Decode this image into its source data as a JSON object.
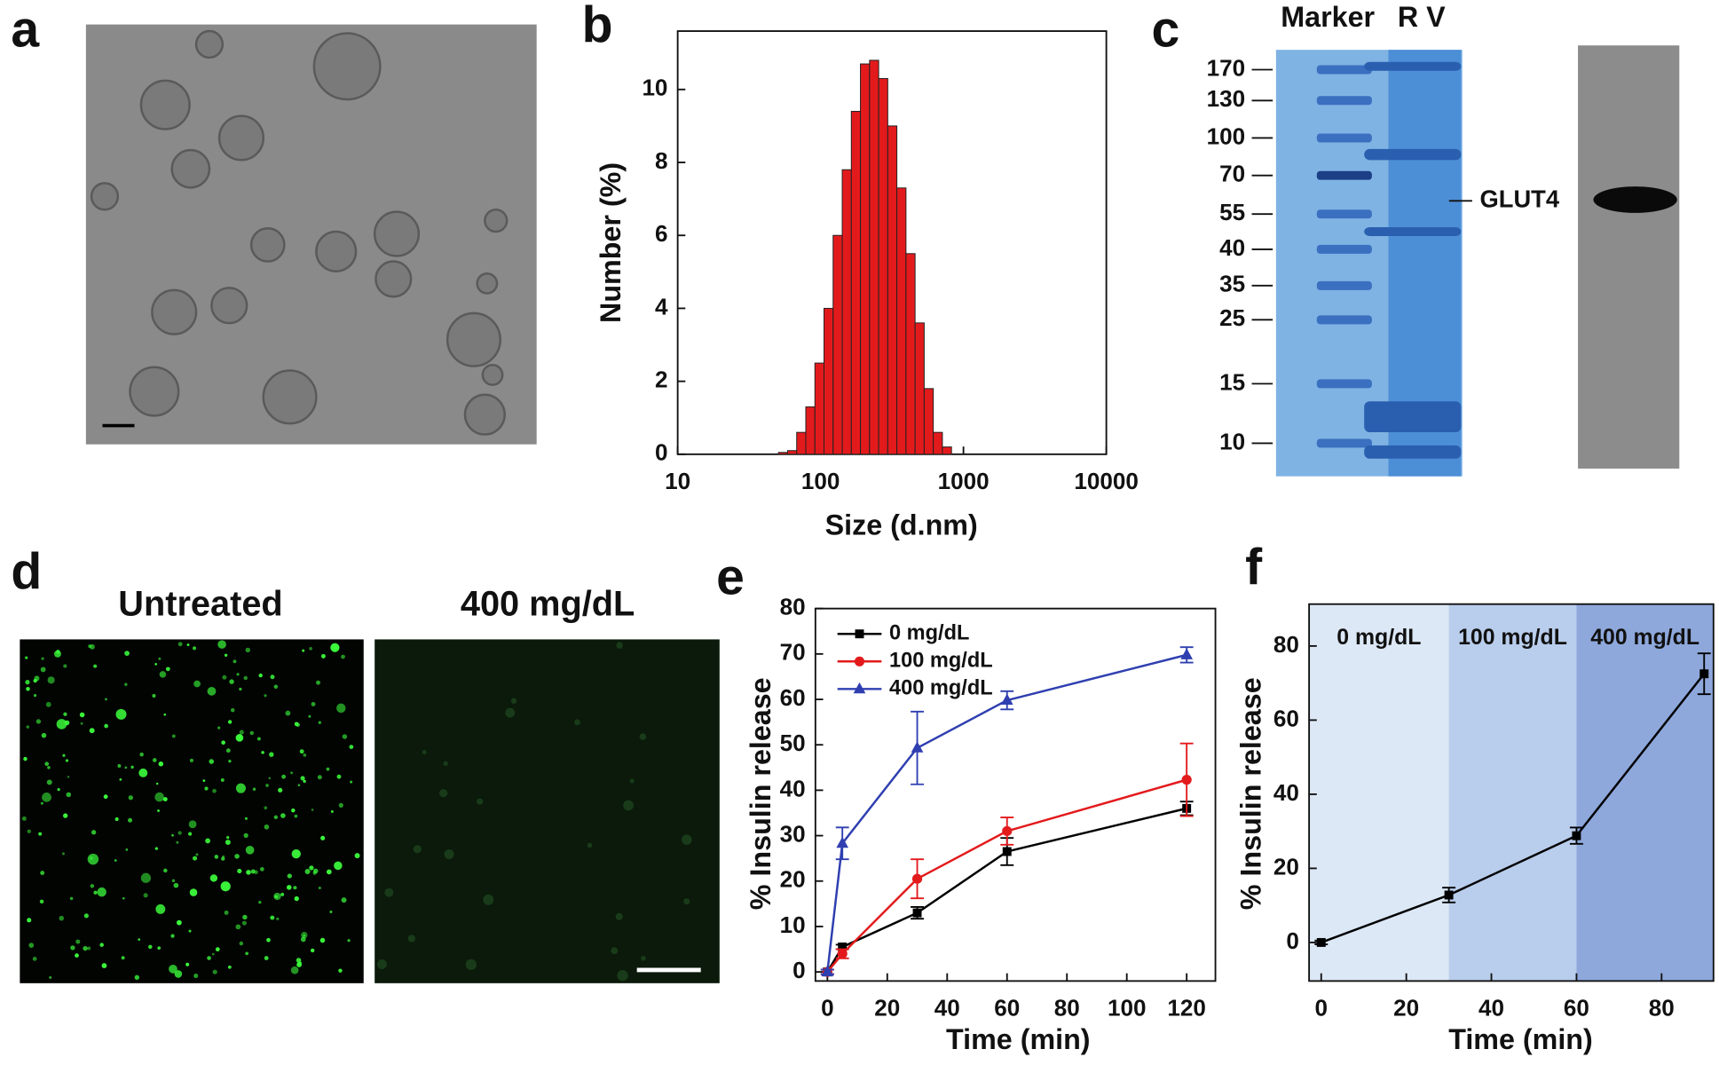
{
  "panel_labels": [
    "a",
    "b",
    "c",
    "d",
    "e",
    "f"
  ],
  "gel": {
    "headers": [
      "Marker",
      "R V"
    ],
    "ladder": [
      170,
      130,
      100,
      70,
      55,
      40,
      35,
      25,
      15,
      10
    ],
    "band_label": "GLUT4"
  },
  "fluorescence": {
    "titles": [
      "Untreated",
      "400 mg/dL"
    ]
  },
  "chart_data": [
    {
      "type": "histogram",
      "xlabel": "Size (d.nm)",
      "ylabel": "Number (%)",
      "xscale": "log",
      "xlim": [
        10,
        10000
      ],
      "ylim": [
        0,
        11.6
      ],
      "xticks": [
        10,
        100,
        1000,
        10000
      ],
      "yticks": [
        0,
        2,
        4,
        6,
        8,
        10
      ],
      "color": "#e31a1c",
      "bins": [
        50.75,
        58.77,
        68.06,
        78.82,
        91.28,
        105.7,
        122.4,
        141.8,
        164.2,
        190.1,
        220.2,
        255.0,
        295.3,
        342.0,
        396.1,
        458.7,
        531.2,
        615.1,
        712.4,
        825.0
      ],
      "counts": [
        0.05,
        0.1,
        0.6,
        1.3,
        2.5,
        4.0,
        6.0,
        7.8,
        9.4,
        10.7,
        10.8,
        10.3,
        9.0,
        7.3,
        5.5,
        3.6,
        1.8,
        0.6,
        0.2
      ]
    },
    {
      "type": "line",
      "xlabel": "Time (min)",
      "ylabel": "% Insulin release",
      "xlim": [
        -4,
        129.6
      ],
      "ylim": [
        -2,
        80
      ],
      "xticks": [
        0,
        20,
        40,
        60,
        80,
        100,
        120
      ],
      "yticks": [
        0,
        10,
        20,
        30,
        40,
        50,
        60,
        70,
        80
      ],
      "legend": "upper left",
      "x": [
        0,
        5,
        30,
        60,
        120
      ],
      "series": [
        {
          "name": "0 mg/dL",
          "color": "#000000",
          "marker": "square",
          "values": [
            0,
            5.5,
            13,
            26.5,
            36
          ],
          "errors": [
            0.5,
            0.5,
            1.3,
            3,
            1.5
          ]
        },
        {
          "name": "100 mg/dL",
          "color": "#e31a1c",
          "marker": "circle",
          "values": [
            0,
            4,
            20.5,
            31,
            42.3
          ],
          "errors": [
            0.5,
            1,
            4.3,
            3,
            8
          ]
        },
        {
          "name": "400 mg/dL",
          "color": "#2f3fb0",
          "marker": "triangle",
          "values": [
            0,
            28.3,
            49.3,
            59.8,
            69.8
          ],
          "errors": [
            0.5,
            3.5,
            8,
            2,
            1.7
          ]
        }
      ]
    },
    {
      "type": "line",
      "xlabel": "Time (min)",
      "ylabel": "% Insulin release",
      "xlim": [
        -2.85,
        92.2
      ],
      "ylim": [
        -10.4,
        91.3
      ],
      "xticks": [
        0,
        20,
        40,
        60,
        80
      ],
      "yticks": [
        0,
        20,
        40,
        60,
        80
      ],
      "region_bounds": [
        30,
        60
      ],
      "region_labels": [
        "0 mg/dL",
        "100 mg/dL",
        "400 mg/dL"
      ],
      "region_colors": [
        "#dce8f6",
        "#b9cdec",
        "#8ea8dc"
      ],
      "x": [
        0,
        30,
        60,
        90
      ],
      "series": [
        {
          "color": "#000000",
          "marker": "square",
          "values": [
            0,
            12.8,
            28.8,
            72.5
          ],
          "errors": [
            0.5,
            2,
            2.2,
            5.5
          ]
        }
      ]
    }
  ]
}
